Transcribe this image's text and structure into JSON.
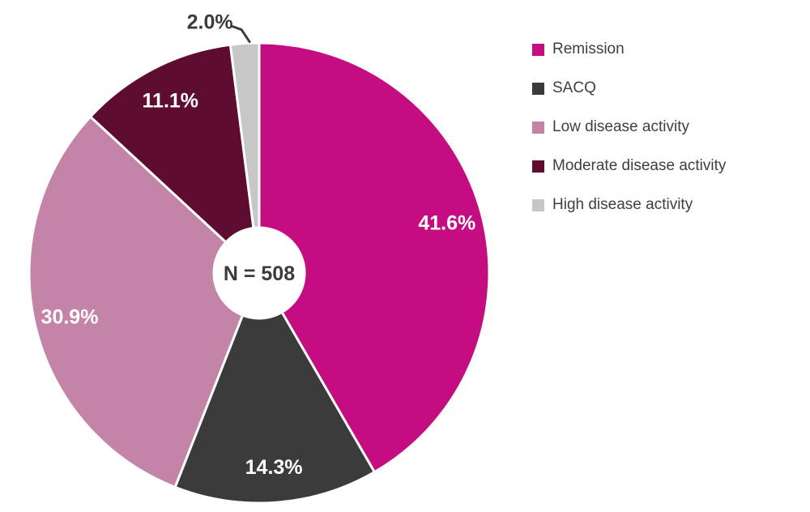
{
  "chart_data": {
    "type": "pie",
    "center_label": "N = 508",
    "direction": "clockwise",
    "start_angle": "12-oclock",
    "legend_position": "right",
    "donut_hole": true,
    "label_color_inside": "#ffffff",
    "label_color_outside": "#3b3b3b",
    "series": [
      {
        "name": "Remission",
        "value": 41.6,
        "label": "41.6%",
        "color": "#c50d82"
      },
      {
        "name": "SACQ",
        "value": 14.3,
        "label": "14.3%",
        "color": "#3b3b3b"
      },
      {
        "name": "Low disease activity",
        "value": 30.9,
        "label": "30.9%",
        "color": "#c484a8"
      },
      {
        "name": "Moderate disease activity",
        "value": 11.1,
        "label": "11.1%",
        "color": "#5e0d31"
      },
      {
        "name": "High disease activity",
        "value": 2.0,
        "label": "2.0%",
        "color": "#c7c7c7",
        "label_outside": true
      }
    ]
  }
}
